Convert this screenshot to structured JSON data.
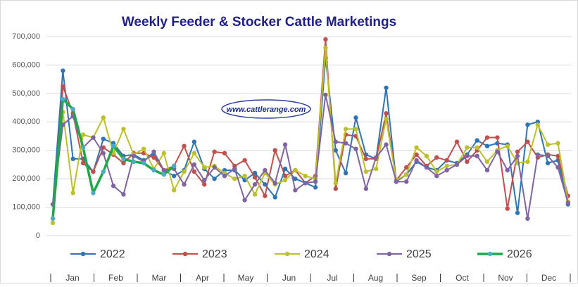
{
  "chart_data": {
    "type": "line",
    "title": "Weekly Feeder & Stocker Cattle Marketings",
    "watermark": "www.cattlerange.com",
    "month_labels": [
      "Jan",
      "Feb",
      "Mar",
      "Apr",
      "May",
      "Jun",
      "Jul",
      "Aug",
      "Sep",
      "Oct",
      "Nov",
      "Dec"
    ],
    "ylim": [
      0,
      700000
    ],
    "yticks": [
      0,
      {
        "value": 100000,
        "label": "100,000"
      },
      {
        "value": 200000,
        "label": "200,000"
      },
      {
        "value": 300000,
        "label": "300,000"
      },
      {
        "value": 400000,
        "label": "400,000"
      },
      {
        "value": 500000,
        "label": "500,000"
      },
      {
        "value": 600000,
        "label": "600,000"
      },
      {
        "value": 700000,
        "label": "700,000"
      }
    ],
    "grid": true,
    "legend": "bottom",
    "series": [
      {
        "name": "2022",
        "color": "#2e75b6",
        "values": [
          110000,
          580000,
          270000,
          270000,
          225000,
          340000,
          325000,
          280000,
          285000,
          265000,
          285000,
          230000,
          210000,
          230000,
          330000,
          235000,
          200000,
          230000,
          230000,
          195000,
          220000,
          180000,
          135000,
          235000,
          200000,
          185000,
          170000,
          625000,
          300000,
          220000,
          415000,
          285000,
          270000,
          520000,
          190000,
          215000,
          260000,
          240000,
          230000,
          265000,
          255000,
          285000,
          335000,
          315000,
          325000,
          320000,
          80000,
          390000,
          400000,
          255000,
          265000,
          110000
        ]
      },
      {
        "name": "2023",
        "color": "#c0504d",
        "values": [
          60000,
          525000,
          430000,
          255000,
          225000,
          310000,
          285000,
          255000,
          290000,
          290000,
          275000,
          230000,
          245000,
          315000,
          225000,
          180000,
          295000,
          290000,
          245000,
          265000,
          205000,
          140000,
          300000,
          210000,
          230000,
          185000,
          210000,
          690000,
          165000,
          355000,
          350000,
          270000,
          270000,
          430000,
          195000,
          240000,
          285000,
          245000,
          275000,
          265000,
          330000,
          260000,
          300000,
          345000,
          345000,
          95000,
          295000,
          330000,
          275000,
          285000,
          280000,
          140000
        ]
      },
      {
        "name": "2024",
        "color": "#bcc12a",
        "values": [
          45000,
          435000,
          150000,
          355000,
          345000,
          415000,
          290000,
          375000,
          285000,
          305000,
          235000,
          290000,
          160000,
          225000,
          290000,
          240000,
          245000,
          220000,
          200000,
          210000,
          145000,
          220000,
          180000,
          195000,
          230000,
          210000,
          200000,
          660000,
          185000,
          375000,
          375000,
          225000,
          235000,
          410000,
          195000,
          215000,
          310000,
          280000,
          225000,
          245000,
          250000,
          310000,
          310000,
          260000,
          300000,
          315000,
          255000,
          260000,
          390000,
          320000,
          325000,
          120000
        ]
      },
      {
        "name": "2025",
        "color": "#8064a2",
        "values": [
          110000,
          390000,
          420000,
          310000,
          345000,
          290000,
          175000,
          145000,
          280000,
          260000,
          295000,
          230000,
          235000,
          180000,
          250000,
          195000,
          240000,
          210000,
          235000,
          125000,
          180000,
          230000,
          185000,
          320000,
          160000,
          185000,
          190000,
          495000,
          330000,
          325000,
          305000,
          165000,
          275000,
          320000,
          190000,
          190000,
          265000,
          240000,
          210000,
          230000,
          250000,
          280000,
          280000,
          230000,
          295000,
          230000,
          280000,
          60000,
          285000,
          280000,
          240000,
          115000
        ]
      },
      {
        "name": "2026",
        "color": "#1fa84a",
        "values": [
          60000,
          480000,
          445000,
          310000,
          150000,
          225000,
          315000,
          270000,
          260000,
          255000,
          230000,
          215000,
          245000,
          null,
          null,
          null,
          null,
          null,
          null,
          null,
          null,
          null,
          null,
          null,
          null,
          null,
          null,
          null,
          null,
          null,
          null,
          null,
          null,
          null,
          null,
          null,
          null,
          null,
          null,
          null,
          null,
          null,
          null,
          null,
          null,
          null,
          null,
          null,
          null,
          null,
          null,
          null
        ]
      }
    ]
  }
}
